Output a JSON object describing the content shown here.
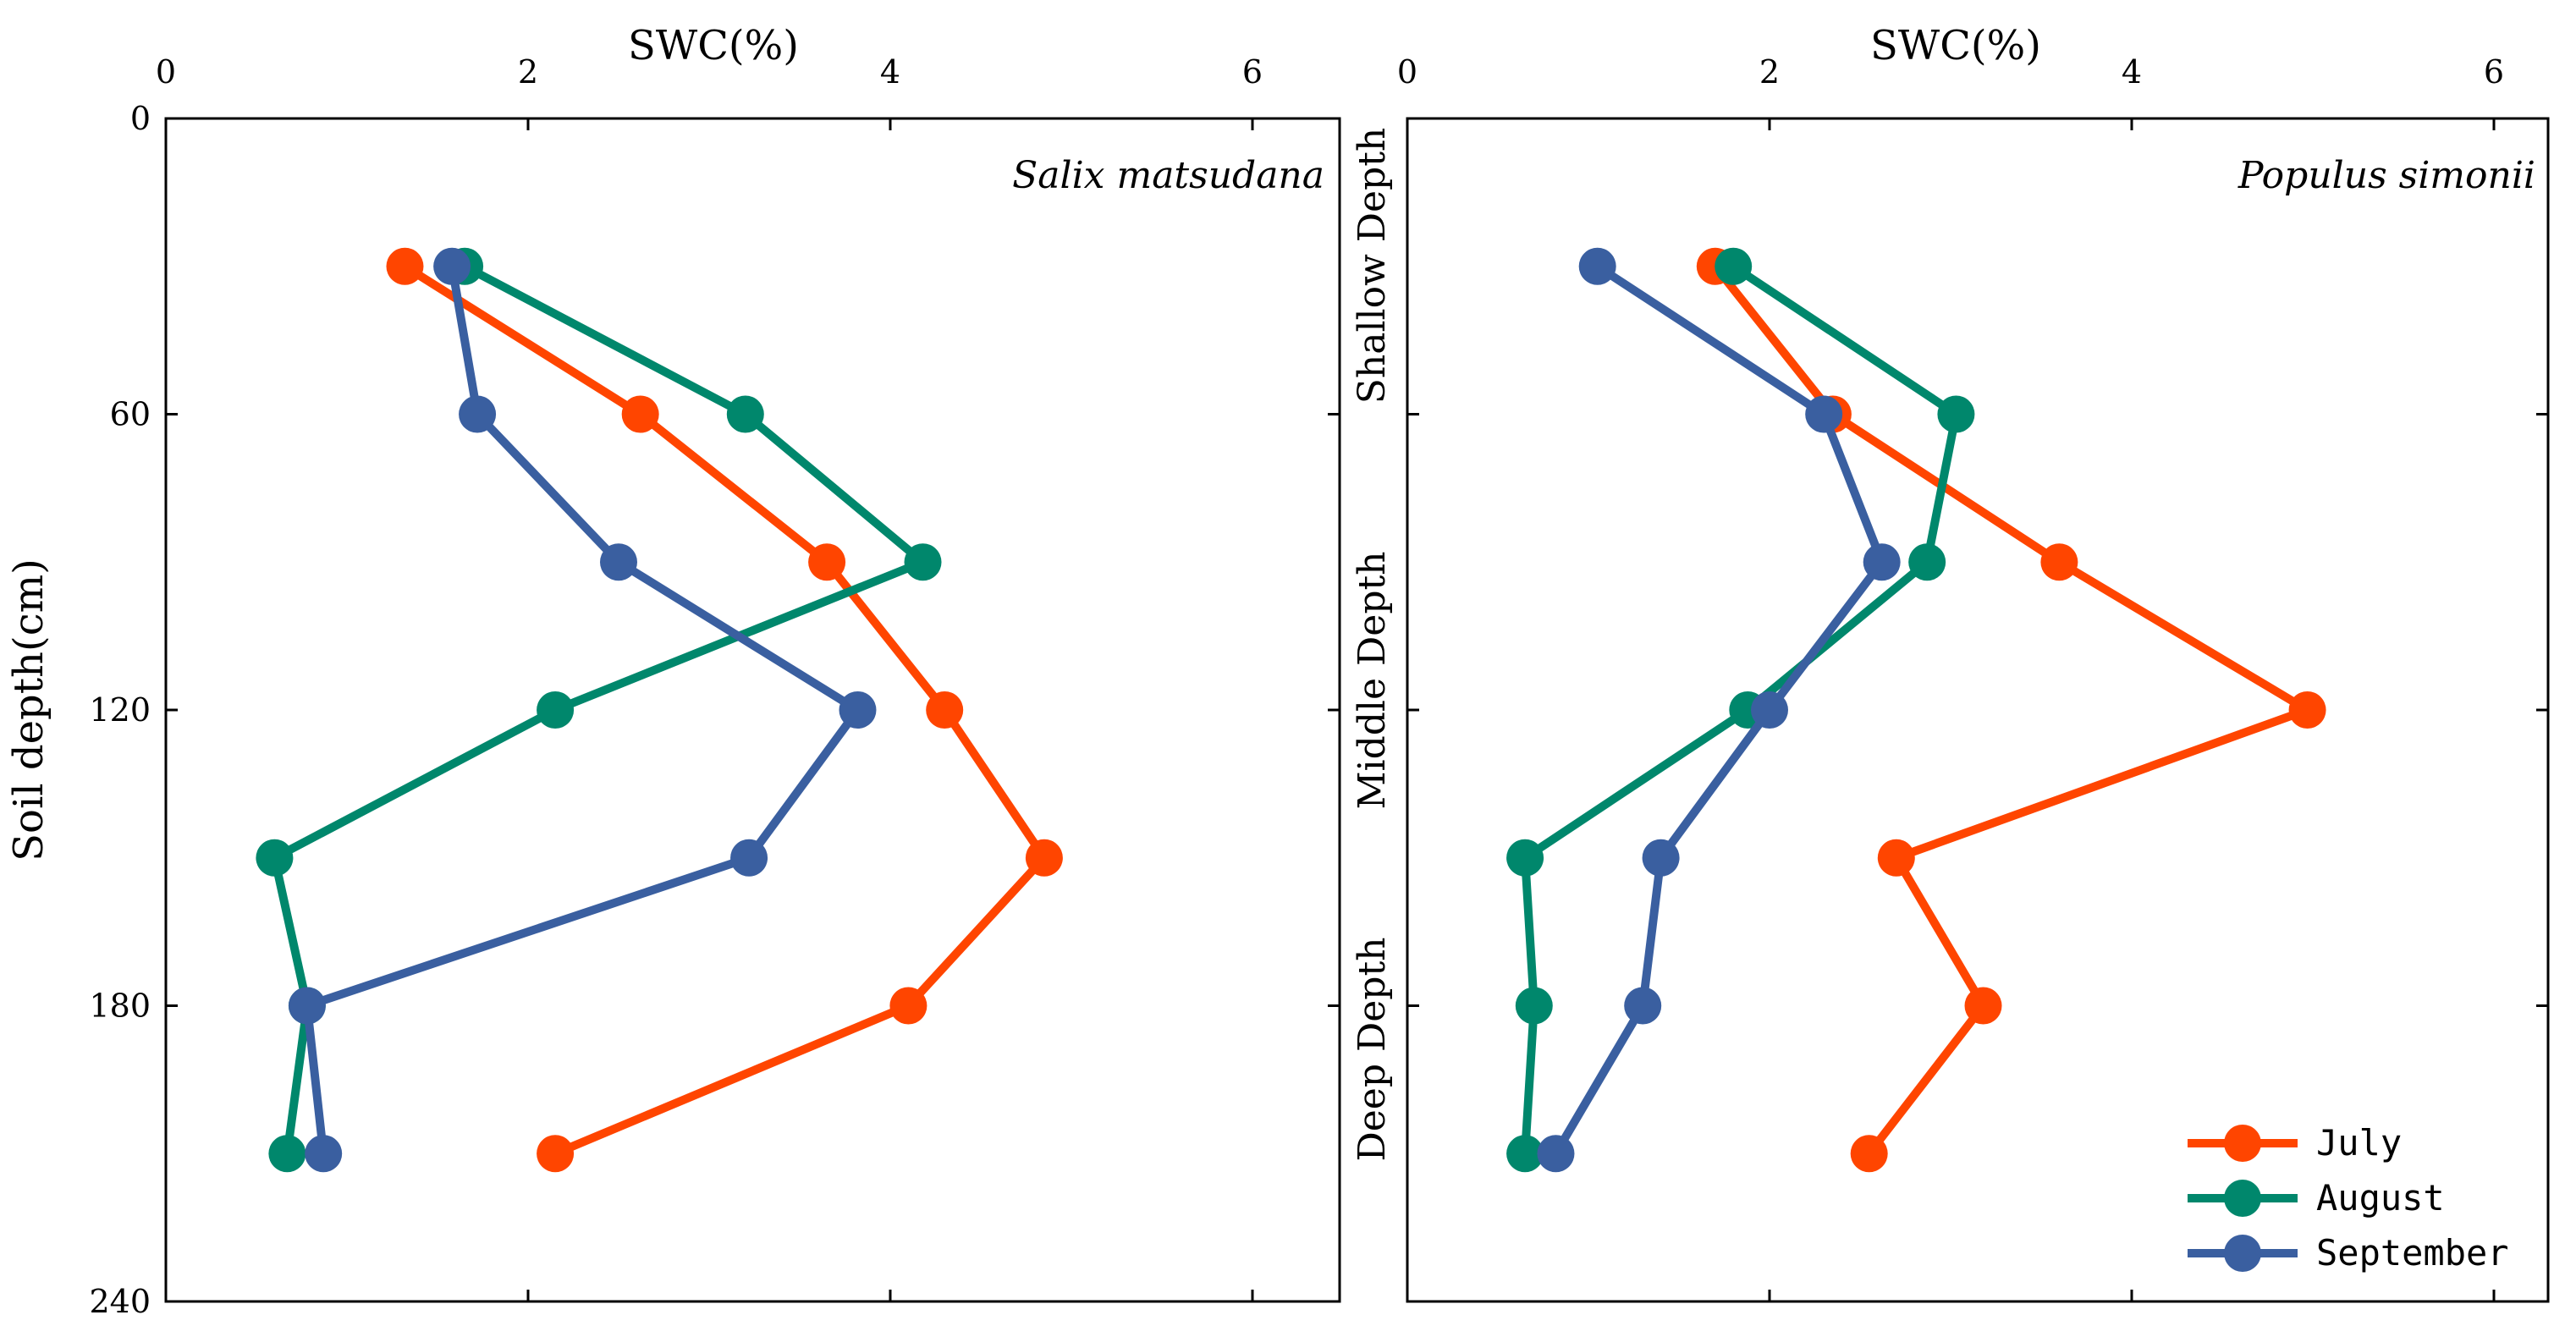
{
  "chart_data": [
    {
      "type": "line",
      "panel": "left",
      "title": "Salix matsudana",
      "xlabel": "SWC(%)",
      "ylabel": "Soil depth(cm)",
      "xlim": [
        0,
        6.5
      ],
      "ylim": [
        0,
        240
      ],
      "y_inverted": true,
      "xticks": [
        "0",
        "2",
        "4",
        "6"
      ],
      "yticks": [
        "0",
        "60",
        "120",
        "180",
        "240"
      ],
      "depths": [
        30,
        60,
        90,
        120,
        150,
        180,
        210
      ],
      "series": [
        {
          "name": "July",
          "color": "#FF4500",
          "values": [
            1.32,
            2.62,
            3.65,
            4.3,
            4.85,
            4.1,
            2.15
          ]
        },
        {
          "name": "August",
          "color": "#00876C",
          "values": [
            1.65,
            3.2,
            4.18,
            2.15,
            0.6,
            0.78,
            0.67
          ]
        },
        {
          "name": "September",
          "color": "#3A5FA0",
          "values": [
            1.58,
            1.72,
            2.5,
            3.82,
            3.22,
            0.78,
            0.87
          ]
        }
      ]
    },
    {
      "type": "line",
      "panel": "right",
      "title": "Populus simonii",
      "xlabel": "SWC(%)",
      "xlim": [
        0,
        6.5
      ],
      "ylim": [
        0,
        240
      ],
      "y_inverted": true,
      "xticks": [
        "0",
        "2",
        "4",
        "6"
      ],
      "zones": [
        "Shallow Depth",
        "Middle Depth",
        "Deep Depth"
      ],
      "depths": [
        30,
        60,
        90,
        120,
        150,
        180,
        210
      ],
      "series": [
        {
          "name": "July",
          "color": "#FF4500",
          "values": [
            1.7,
            2.35,
            3.6,
            4.97,
            2.7,
            3.18,
            2.55
          ]
        },
        {
          "name": "August",
          "color": "#00876C",
          "values": [
            1.8,
            3.03,
            2.87,
            1.88,
            0.65,
            0.7,
            0.65
          ]
        },
        {
          "name": "September",
          "color": "#3A5FA0",
          "values": [
            1.05,
            2.3,
            2.62,
            2.0,
            1.4,
            1.3,
            0.82
          ]
        }
      ]
    }
  ],
  "legend": {
    "position": "bottom-right",
    "items": [
      {
        "label": "July",
        "color": "#FF4500"
      },
      {
        "label": "August",
        "color": "#00876C"
      },
      {
        "label": "September",
        "color": "#3A5FA0"
      }
    ]
  }
}
